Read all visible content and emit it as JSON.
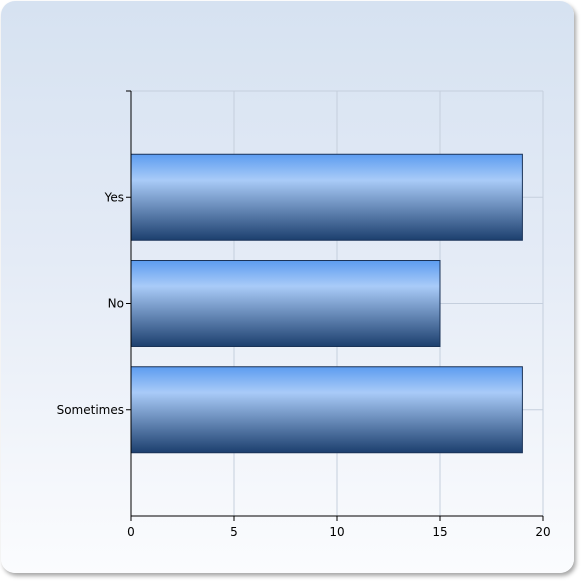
{
  "chart_data": {
    "type": "bar",
    "orientation": "horizontal",
    "title": "",
    "xlabel": "",
    "ylabel": "",
    "categories": [
      "Yes",
      "No",
      "Sometimes"
    ],
    "values": [
      19,
      15,
      19
    ],
    "xlim": [
      0,
      20
    ],
    "x_ticks": [
      "0",
      "5",
      "10",
      "15",
      "20"
    ],
    "grid": true,
    "legend": "none",
    "colors": {
      "bar_top": "#5c9cf0",
      "bar_highlight": "#a9cbf8",
      "bar_bottom": "#1c3f6e",
      "grid": "#c5cfdd",
      "axis": "#000000"
    }
  }
}
